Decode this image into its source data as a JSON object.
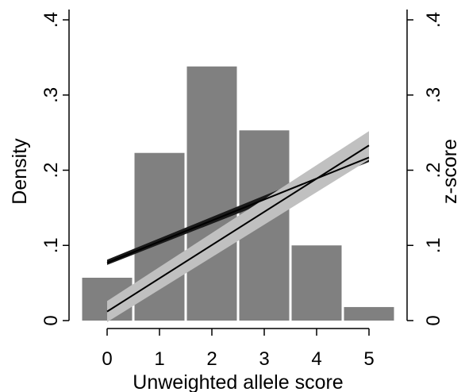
{
  "chart_data": {
    "type": "bar",
    "xlabel": "Unweighted allele score",
    "ylabel": "Density",
    "y2label": "z-score",
    "categories": [
      0,
      1,
      2,
      3,
      4,
      5
    ],
    "xlim": [
      -0.5,
      5.5
    ],
    "ylim": [
      0,
      0.4
    ],
    "y2lim": [
      0,
      0.4
    ],
    "x_ticks": [
      "0",
      "1",
      "2",
      "3",
      "4",
      "5"
    ],
    "y_ticks": [
      {
        "value": 0,
        "label": "0"
      },
      {
        "value": 0.1,
        "label": ".1"
      },
      {
        "value": 0.2,
        "label": ".2"
      },
      {
        "value": 0.3,
        "label": ".3"
      },
      {
        "value": 0.4,
        "label": ".4"
      }
    ],
    "y2_ticks": [
      {
        "value": 0,
        "label": "0"
      },
      {
        "value": 0.1,
        "label": ".1"
      },
      {
        "value": 0.2,
        "label": ".2"
      },
      {
        "value": 0.3,
        "label": ".3"
      },
      {
        "value": 0.4,
        "label": ".4"
      }
    ],
    "histogram": {
      "values": [
        0.057,
        0.223,
        0.338,
        0.253,
        0.1,
        0.018
      ],
      "color": "#808080"
    },
    "fit_lines": [
      {
        "x": [
          0,
          5
        ],
        "y": [
          0.077,
          0.217
        ],
        "ci_lower": [
          0.074,
          0.211
        ],
        "ci_upper": [
          0.081,
          0.223
        ],
        "line_color": "#000000",
        "band_color": "#1a1a1a"
      },
      {
        "x": [
          0,
          5
        ],
        "y": [
          0.012,
          0.233
        ],
        "ci_lower": [
          -0.002,
          0.214
        ],
        "ci_upper": [
          0.026,
          0.252
        ],
        "line_color": "#000000",
        "band_color": "#c0c0c0"
      }
    ],
    "grid": false,
    "legend": "none"
  }
}
